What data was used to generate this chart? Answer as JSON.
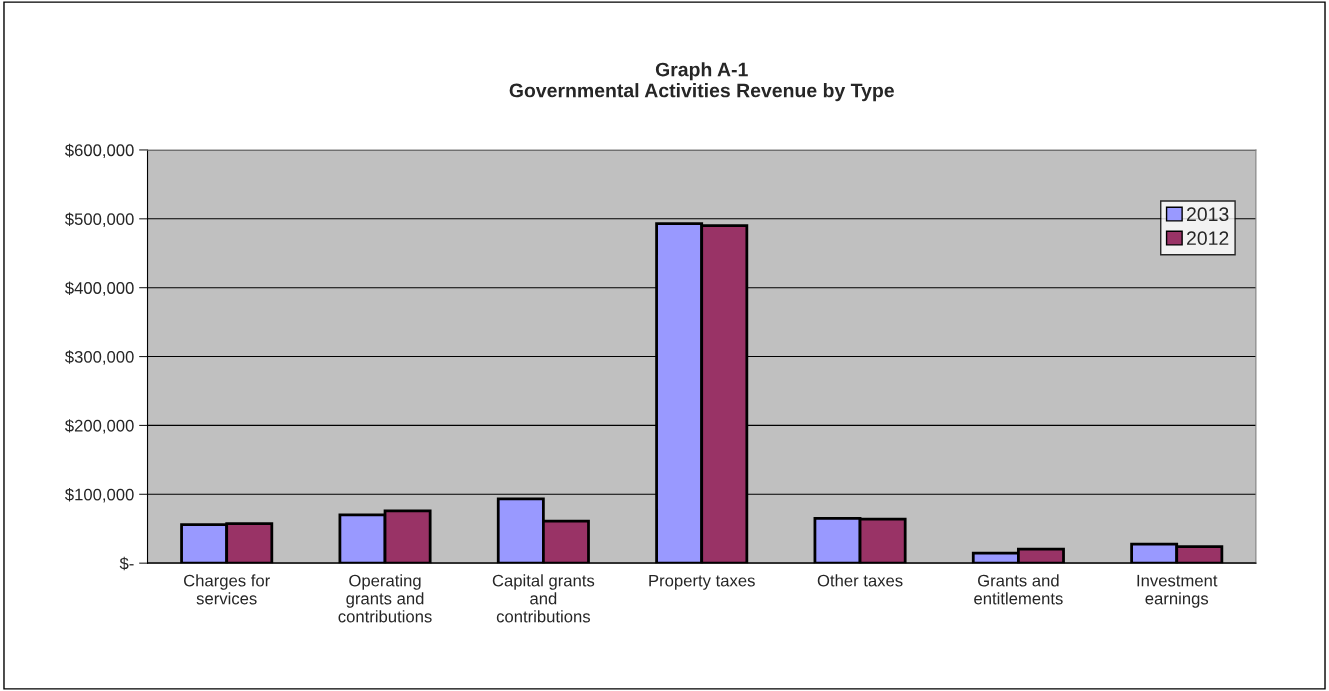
{
  "chart_data": {
    "type": "bar",
    "title": "Graph A-1\nGovernmental Activities Revenue by Type",
    "categories": [
      "Charges for\nservices",
      "Operating\ngrants and\ncontributions",
      "Capital grants\nand\ncontributions",
      "Property taxes",
      "Other taxes",
      "Grants and\nentitlements",
      "Investment\nearnings"
    ],
    "series": [
      {
        "name": "2013",
        "color": "#9999ff",
        "values": [
          56000,
          70000,
          93500,
          493000,
          65000,
          14500,
          27500
        ]
      },
      {
        "name": "2012",
        "color": "#993366",
        "values": [
          57500,
          76000,
          61000,
          490000,
          64000,
          20500,
          24000
        ]
      }
    ],
    "ylim": [
      0,
      600000
    ],
    "yticks": [
      {
        "value": 0,
        "label": "$-"
      },
      {
        "value": 100000,
        "label": "$100,000"
      },
      {
        "value": 200000,
        "label": "$200,000"
      },
      {
        "value": 300000,
        "label": "$300,000"
      },
      {
        "value": 400000,
        "label": "$400,000"
      },
      {
        "value": 500000,
        "label": "$500,000"
      },
      {
        "value": 600000,
        "label": "$600,000"
      }
    ],
    "grid": "y",
    "legend": "top right"
  }
}
